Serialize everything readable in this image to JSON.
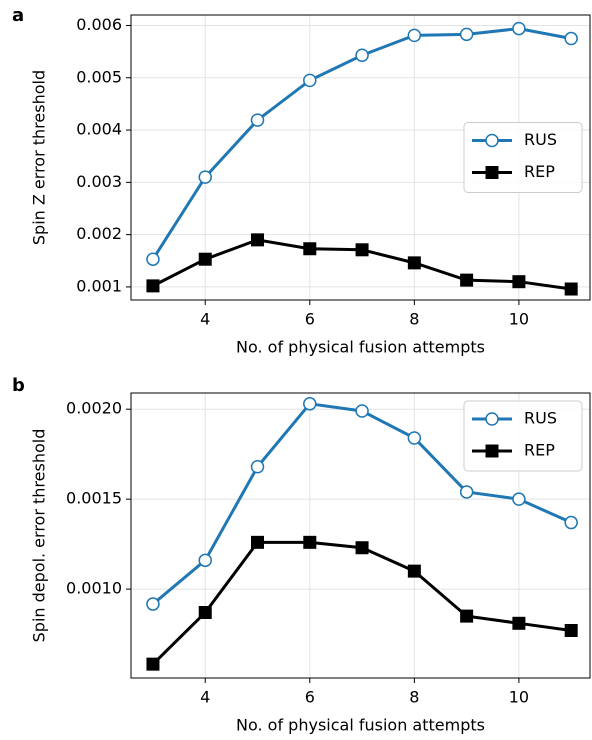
{
  "chart_data": [
    {
      "type": "line",
      "panel_label": "a",
      "xlabel": "No. of physical fusion attempts",
      "ylabel": "Spin Z error threshold",
      "x": [
        3,
        4,
        5,
        6,
        7,
        8,
        9,
        10,
        11
      ],
      "series": [
        {
          "name": "RUS",
          "color": "#1f77b4",
          "marker": "o",
          "values": [
            0.00153,
            0.0031,
            0.00419,
            0.00495,
            0.00543,
            0.00581,
            0.00583,
            0.00594,
            0.00575
          ]
        },
        {
          "name": "REP",
          "color": "#000000",
          "marker": "s",
          "values": [
            0.00102,
            0.00153,
            0.0019,
            0.00173,
            0.00171,
            0.00146,
            0.00113,
            0.0011,
            0.00096
          ]
        }
      ],
      "xlim": [
        2.58,
        11.36
      ],
      "xticks": [
        4,
        6,
        8,
        10
      ],
      "ylim": [
        0.00075,
        0.0062
      ],
      "yticks": [
        0.001,
        0.002,
        0.003,
        0.004,
        0.005,
        0.006
      ],
      "grid": true,
      "legend": "center right"
    },
    {
      "type": "line",
      "panel_label": "b",
      "xlabel": "No. of physical fusion attempts",
      "ylabel": "Spin depol. error threshold",
      "x": [
        3,
        4,
        5,
        6,
        7,
        8,
        9,
        10,
        11
      ],
      "series": [
        {
          "name": "RUS",
          "color": "#1f77b4",
          "marker": "o",
          "values": [
            0.000917,
            0.00116,
            0.00168,
            0.00203,
            0.00199,
            0.00184,
            0.00154,
            0.0015,
            0.00137
          ]
        },
        {
          "name": "REP",
          "color": "#000000",
          "marker": "s",
          "values": [
            0.000583,
            0.00087,
            0.00126,
            0.00126,
            0.00123,
            0.0011,
            0.00085,
            0.00081,
            0.00077
          ]
        }
      ],
      "xlim": [
        2.58,
        11.36
      ],
      "xticks": [
        4,
        6,
        8,
        10
      ],
      "ylim": [
        0.000506,
        0.00209
      ],
      "yticks": [
        {
          "value": 0.001,
          "label": "0.0010"
        },
        0.0015,
        {
          "value": 0.002,
          "label": "0.0020"
        }
      ],
      "grid": true,
      "legend": "upper right"
    }
  ]
}
